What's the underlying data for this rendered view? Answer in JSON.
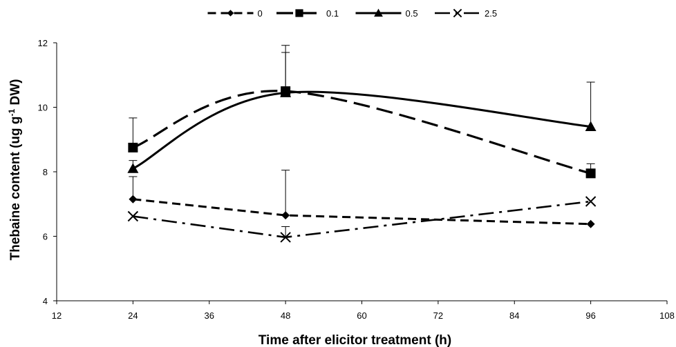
{
  "chart_data": {
    "type": "line",
    "xlabel": "Time after elicitor treatment (h)",
    "ylabel": {
      "pre": "Thebaine content (ug g",
      "sup": "-1",
      "post": " DW)"
    },
    "xlim": [
      12,
      108
    ],
    "ylim": [
      4,
      12
    ],
    "xticks": [
      12,
      24,
      36,
      48,
      60,
      72,
      84,
      96,
      108
    ],
    "yticks": [
      4,
      6,
      8,
      10,
      12
    ],
    "legend_position": "top-center",
    "grid": false,
    "x": [
      24,
      48,
      96
    ],
    "series": [
      {
        "name": "0",
        "marker": "diamond",
        "dash": "dash",
        "smooth": false,
        "values": [
          7.15,
          6.65,
          6.38
        ],
        "error": [
          0.7,
          1.4,
          0
        ]
      },
      {
        "name": "0.1",
        "marker": "square",
        "dash": "longdash",
        "smooth": true,
        "values": [
          8.75,
          10.5,
          7.95
        ],
        "error": [
          0.92,
          1.42,
          0.3
        ]
      },
      {
        "name": "0.5",
        "marker": "triangle",
        "dash": "solid",
        "smooth": true,
        "values": [
          8.1,
          10.45,
          9.4
        ],
        "error": [
          0.25,
          1.25,
          1.38
        ]
      },
      {
        "name": "2.5",
        "marker": "x",
        "dash": "dashdot",
        "smooth": false,
        "values": [
          6.62,
          5.97,
          7.08
        ],
        "error": [
          0,
          0.33,
          0
        ]
      }
    ]
  }
}
